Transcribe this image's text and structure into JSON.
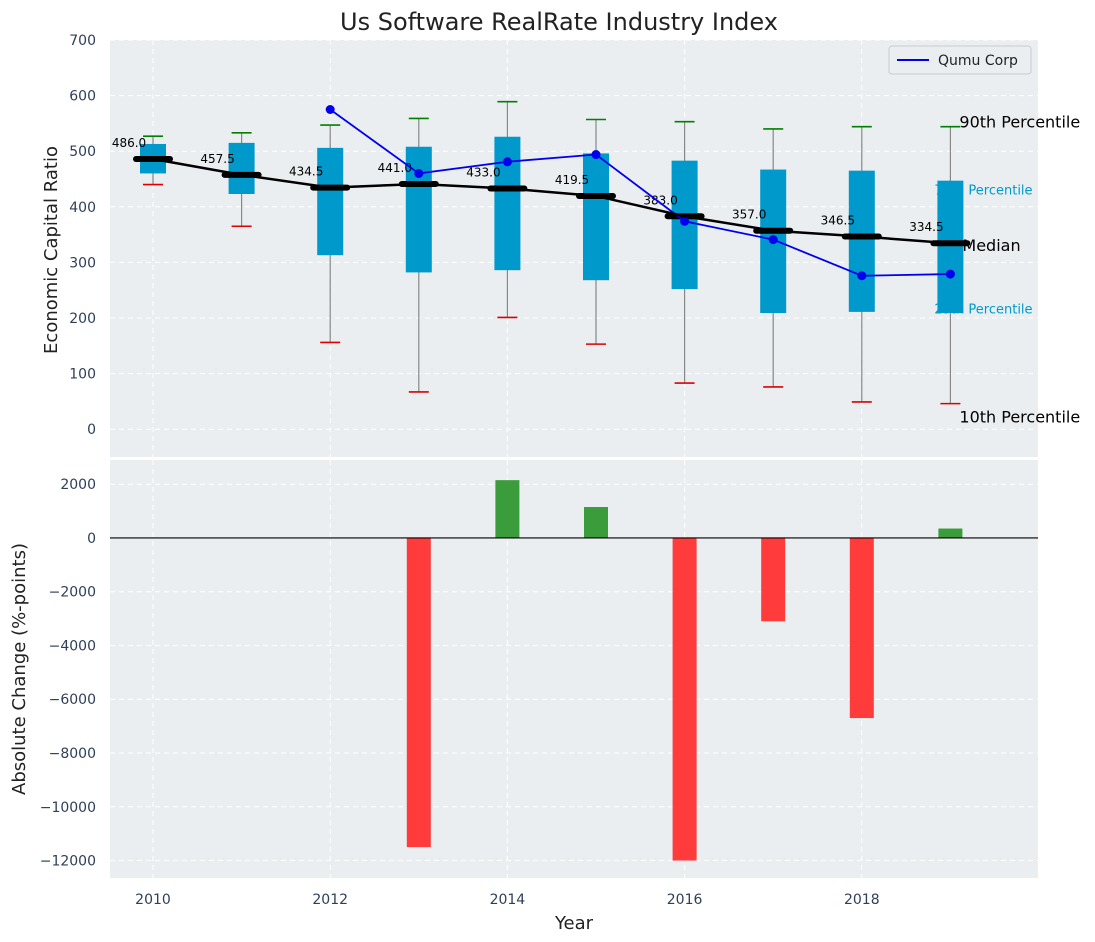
{
  "chart_data": [
    {
      "type": "box",
      "title": "Us Software RealRate Industry Index",
      "ylabel": "Economic Capital Ratio",
      "ylim": [
        -50,
        700
      ],
      "yticks": [
        0,
        100,
        200,
        300,
        400,
        500,
        600,
        700
      ],
      "categories": [
        2010,
        2011,
        2012,
        2013,
        2014,
        2015,
        2016,
        2017,
        2018,
        2019
      ],
      "p10": [
        440,
        365,
        156,
        67,
        201,
        153,
        83,
        76,
        49,
        46
      ],
      "p25": [
        460,
        423,
        313,
        282,
        286,
        268,
        252,
        209,
        211,
        209
      ],
      "median": [
        486.0,
        457.5,
        434.5,
        441.0,
        433.0,
        419.5,
        383.0,
        357.0,
        346.5,
        334.5
      ],
      "p75": [
        513,
        515,
        506,
        508,
        526,
        496,
        483,
        467,
        465,
        447
      ],
      "p90": [
        527,
        533,
        547,
        559,
        589,
        557,
        553,
        540,
        544,
        544
      ],
      "median_labels": [
        "486.0",
        "457.5",
        "434.5",
        "441.0",
        "433.0",
        "419.5",
        "383.0",
        "357.0",
        "346.5",
        "334.5"
      ],
      "company_series": {
        "name": "Qumu Corp",
        "x": [
          2012,
          2013,
          2014,
          2015,
          2016,
          2017,
          2018,
          2019
        ],
        "y": [
          575,
          460,
          481,
          494,
          374,
          341,
          276,
          279
        ]
      },
      "annotations": {
        "p90": "90th Percentile",
        "p75": "75th Percentile",
        "median": "Median",
        "p25": "25th Percentile",
        "p10": "10th Percentile"
      },
      "legend": "top-right",
      "grid": true
    },
    {
      "type": "bar",
      "xlabel": "Year",
      "ylabel": "Absolute Change (%-points)",
      "ylim": [
        -12650,
        2900
      ],
      "yticks": [
        -12000,
        -10000,
        -8000,
        -6000,
        -4000,
        -2000,
        0,
        2000
      ],
      "ytick_labels": [
        "−12000",
        "−10000",
        "−8000",
        "−6000",
        "−4000",
        "−2000",
        "0",
        "2000"
      ],
      "categories": [
        2013,
        2014,
        2015,
        2016,
        2017,
        2018,
        2019
      ],
      "values": [
        -11500,
        2150,
        1150,
        -12000,
        -3100,
        -6700,
        350
      ],
      "xticks": [
        2010,
        2012,
        2014,
        2016,
        2018
      ],
      "xlim": [
        2009.5,
        2020.0
      ],
      "positive_color": "#3a9c3a",
      "negative_color": "#ff3b3b",
      "grid": true
    }
  ],
  "colors": {
    "panel_bg": "#eaeef0",
    "box_fill": "#0099cc",
    "median": "#000000",
    "company_line": "#0000ee",
    "whisker_top": "#008000",
    "whisker_bottom": "#dd0000",
    "tick_text": "#2e3f57"
  }
}
